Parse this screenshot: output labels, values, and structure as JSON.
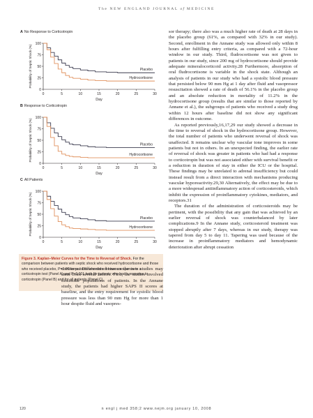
{
  "running_head": {
    "prefix": "The ",
    "journal": "NEW ENGLAND JOURNAL",
    "mid": " of ",
    "suffix": "MEDICINE"
  },
  "colors": {
    "placebo": "#3b3b4f",
    "hydrocortisone": "#e0905c",
    "caption_bg": "#f7e8d8",
    "caption_title": "#c0392b"
  },
  "figure": {
    "panels": [
      {
        "letter": "A",
        "title": "No Response to Corticotropin"
      },
      {
        "letter": "B",
        "title": "Response to Corticotropin"
      },
      {
        "letter": "C",
        "title": "All Patients"
      }
    ],
    "caption_title": "Figure 3. Kaplan–Meier Curves for the Time to Reversal of Shock.",
    "caption_text": "For the comparison between patients with septic shock who received hydro­cortisone and those who received placebo, P=0.06 for patients who did not have a response to a corticotropin test (Panel A) and P<0.001 both for pa­tients who had a response to corticotropin (Panel B) and for all patients (Panel C)."
  },
  "chart_data": [
    {
      "type": "line",
      "title": "No Response to Corticotropin",
      "xlabel": "Day",
      "ylabel": "Probability of Septic Shock (%)",
      "xlim": [
        0,
        30
      ],
      "ylim": [
        0,
        100
      ],
      "xticks": [
        "0",
        "5",
        "10",
        "15",
        "20",
        "25",
        "30"
      ],
      "yticks": [
        "0",
        "25",
        "50",
        "75",
        "100"
      ],
      "grid": false,
      "series": [
        {
          "name": "Placebo",
          "x": [
            0,
            1,
            2,
            3,
            4,
            5,
            6,
            7,
            8,
            10,
            12,
            14,
            17,
            20,
            25,
            30
          ],
          "y": [
            100,
            90,
            80,
            72,
            64,
            57,
            52,
            48,
            45,
            42,
            40,
            38,
            37,
            36,
            36,
            36
          ]
        },
        {
          "name": "Hydrocortisone",
          "x": [
            0,
            1,
            2,
            3,
            4,
            5,
            6,
            7,
            8,
            10,
            12,
            14,
            17,
            20,
            25,
            30
          ],
          "y": [
            100,
            86,
            70,
            56,
            44,
            36,
            30,
            26,
            24,
            22,
            20,
            19,
            18,
            18,
            18,
            18
          ]
        }
      ]
    },
    {
      "type": "line",
      "title": "Response to Corticotropin",
      "xlabel": "Day",
      "ylabel": "Probability of Septic Shock (%)",
      "xlim": [
        0,
        30
      ],
      "ylim": [
        0,
        100
      ],
      "xticks": [
        "0",
        "5",
        "10",
        "15",
        "20",
        "25",
        "30"
      ],
      "yticks": [
        "0",
        "25",
        "50",
        "75",
        "100"
      ],
      "grid": false,
      "series": [
        {
          "name": "Placebo",
          "x": [
            0,
            1,
            2,
            3,
            4,
            5,
            6,
            7,
            8,
            10,
            12,
            14,
            17,
            20,
            25,
            30
          ],
          "y": [
            100,
            88,
            76,
            66,
            58,
            51,
            46,
            42,
            40,
            38,
            36,
            35,
            34,
            34,
            34,
            34
          ]
        },
        {
          "name": "Hydrocortisone",
          "x": [
            0,
            1,
            2,
            3,
            4,
            5,
            6,
            7,
            8,
            10,
            12,
            14,
            17,
            20,
            25,
            30
          ],
          "y": [
            100,
            80,
            56,
            38,
            26,
            20,
            17,
            15,
            14,
            13,
            12,
            12,
            12,
            12,
            12,
            12
          ]
        }
      ]
    },
    {
      "type": "line",
      "title": "All Patients",
      "xlabel": "Day",
      "ylabel": "Probability of Septic Shock (%)",
      "xlim": [
        0,
        30
      ],
      "ylim": [
        0,
        100
      ],
      "xticks": [
        "0",
        "5",
        "10",
        "15",
        "20",
        "25",
        "30"
      ],
      "yticks": [
        "0",
        "25",
        "50",
        "75",
        "100"
      ],
      "grid": false,
      "series": [
        {
          "name": "Placebo",
          "x": [
            0,
            1,
            2,
            3,
            4,
            5,
            6,
            7,
            8,
            10,
            12,
            14,
            17,
            20,
            25,
            30
          ],
          "y": [
            100,
            89,
            78,
            69,
            61,
            54,
            49,
            45,
            42,
            40,
            38,
            36,
            35,
            35,
            35,
            35
          ]
        },
        {
          "name": "Hydrocortisone",
          "x": [
            0,
            1,
            2,
            3,
            4,
            5,
            6,
            7,
            8,
            10,
            12,
            14,
            17,
            20,
            25,
            30
          ],
          "y": [
            100,
            82,
            62,
            46,
            34,
            27,
            23,
            20,
            19,
            18,
            17,
            16,
            15,
            15,
            15,
            15
          ]
        }
      ]
    }
  ],
  "text_left": [
    "cortisone. Differences between the two studies may stem from several factors. First, the studies involved dissimilar populations of patients. In the Annane study, the patients had higher SAPS II scores at baseline, and the entry requirement for systolic blood pressure was less than 90 mm Hg for more than 1 hour despite fluid and vasopres-"
  ],
  "text_right": [
    {
      "indent": false,
      "text": "sor therapy; there also was a much higher rate of death at 28 days in the placebo group (61%, as compared with 32% in our study). Second, enrollment in the Annane study was allowed only within 8 hours after fulfilling entry criteria, as compared with a 72-hour window in our study. Third, fludrocortisone was not given to patients in our study, since 200 mg of hydrocortisone should provide adequate mineralocorticoid activity.28 Furthermore, absorption of oral fludrocortisone is variable in the shock state. Although an analysis of patients in our study who had a systolic blood pressure that persisted below 90 mm Hg at 1 day after fluid and vasopressor resuscitation showed a rate of death of 56.1% in the placebo group and an absolute reduction in mortality of 11.2% in the hydrocortisone group (results that are similar to those reported by Annane et al.), the subgroups of patients who received a study drug within 12 hours after baseline did not show any significant differences in outcome."
    },
    {
      "indent": true,
      "text": "As reported previously,16,17,29 our study showed a decrease in the time to reversal of shock in the hydrocortisone group. However, the total number of patients who underwent reversal of shock was unaffected. It remains unclear why vascular tone improves in some patients but not in others. In an unexpected finding, the earlier rate of reversal of shock was greater in patients who had had a response to corticotropin but was not associated either with survival benefit or a reduction in duration of stay in either the ICU or the hospital. These findings may be unrelated to adrenal insufficiency but could instead result from a direct interaction with mechanisms producing vascular hyporeactivity.29,30 Alternatively, the effect may be due to a more widespread antiinflammatory action of corticosteroids, which inhibit the expression of proinflammatory cytokines, mediators, and receptors.31"
    },
    {
      "indent": true,
      "text": "The duration of the administration of corticosteroids may be pertinent, with the possibility that any gain that was achieved by an earlier reversal of shock was counterbalanced by later complications.9 In the Annane study, corticosteroid treatment was stopped abruptly after 7 days, whereas in our study, therapy was tapered from day 5 to day 11. Tapering was used because of the increase in proinflammatory mediators and hemodynamic deterioration after abrupt cessation"
    }
  ],
  "footer": {
    "page": "120",
    "info": "n engl j med 358;2   www.nejm.org   january 10, 2008"
  }
}
